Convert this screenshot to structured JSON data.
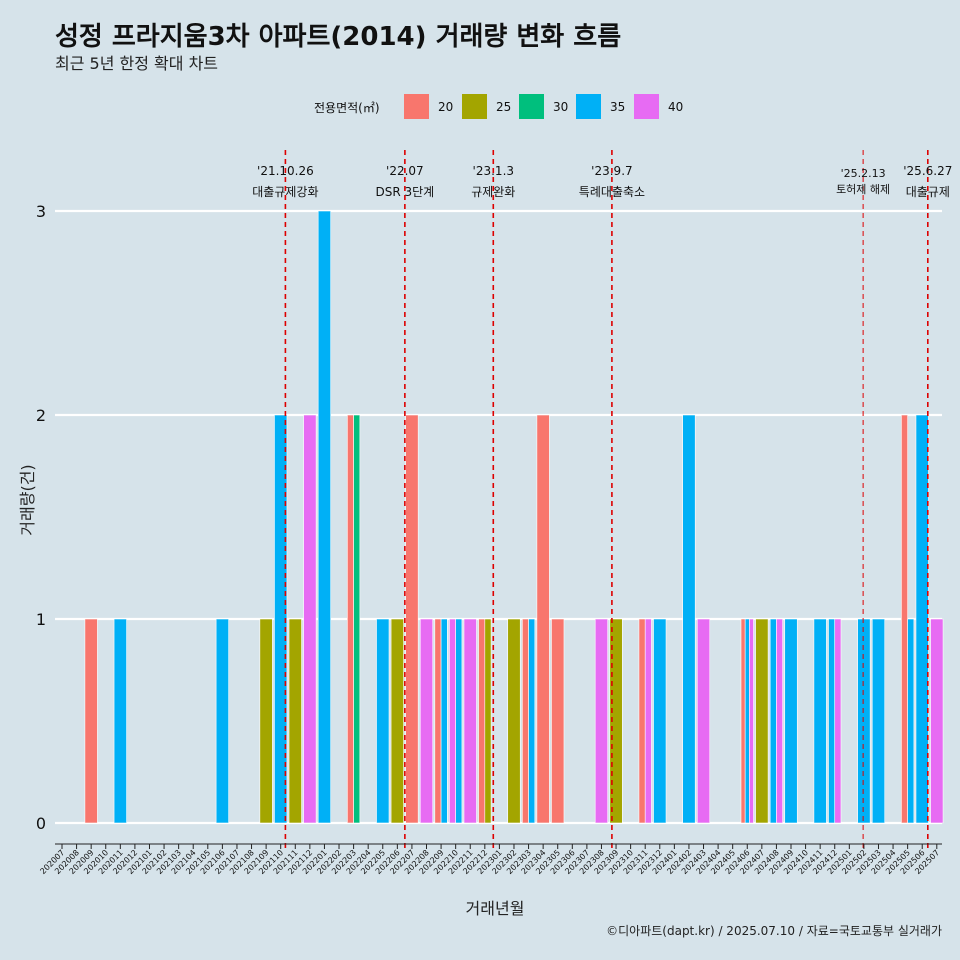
{
  "title": "성정 프라지움3차 아파트(2014) 거래량 변화 흐름",
  "subtitle": "최근 5년 한정 확대 차트",
  "caption": "©디아파트(dapt.kr) / 2025.07.10 / 자료=국토교통부 실거래가",
  "colors": {
    "background": "#d6e3ea",
    "grid": "#ffffff",
    "event_line": "#dd0000",
    "20": "#f8766d",
    "25": "#a3a500",
    "30": "#00bf7d",
    "35": "#00b0f6",
    "40": "#e76bf3"
  },
  "legend": {
    "title": "전용면적(㎡)",
    "items": [
      {
        "key": "20",
        "label": "20"
      },
      {
        "key": "25",
        "label": "25"
      },
      {
        "key": "30",
        "label": "30"
      },
      {
        "key": "35",
        "label": "35"
      },
      {
        "key": "40",
        "label": "40"
      }
    ]
  },
  "chart_data": {
    "type": "bar",
    "title": "성정 프라지움3차 아파트(2014) 거래량 변화 흐름",
    "subtitle": "최근 5년 한정 확대 차트",
    "xlabel": "거래년월",
    "ylabel": "거래량(건)",
    "ylim": [
      0,
      3
    ],
    "yticks": [
      0,
      1,
      2,
      3
    ],
    "grid": true,
    "legend_position": "top",
    "categories": [
      "202007",
      "202008",
      "202009",
      "202010",
      "202011",
      "202012",
      "202101",
      "202102",
      "202103",
      "202104",
      "202105",
      "202106",
      "202107",
      "202108",
      "202109",
      "202110",
      "202111",
      "202112",
      "202201",
      "202202",
      "202203",
      "202204",
      "202205",
      "202206",
      "202207",
      "202208",
      "202209",
      "202210",
      "202211",
      "202212",
      "202301",
      "202302",
      "202303",
      "202304",
      "202305",
      "202306",
      "202307",
      "202308",
      "202309",
      "202310",
      "202311",
      "202312",
      "202401",
      "202402",
      "202403",
      "202404",
      "202405",
      "202406",
      "202407",
      "202408",
      "202409",
      "202410",
      "202411",
      "202412",
      "202501",
      "202502",
      "202503",
      "202504",
      "202505",
      "202506",
      "202507"
    ],
    "bars": [
      {
        "month": "202009",
        "groups": [
          {
            "area": "20",
            "value": 1
          }
        ]
      },
      {
        "month": "202011",
        "groups": [
          {
            "area": "35",
            "value": 1
          }
        ]
      },
      {
        "month": "202106",
        "groups": [
          {
            "area": "35",
            "value": 1
          }
        ]
      },
      {
        "month": "202109",
        "groups": [
          {
            "area": "25",
            "value": 1
          }
        ]
      },
      {
        "month": "202110",
        "groups": [
          {
            "area": "35",
            "value": 2
          }
        ]
      },
      {
        "month": "202111",
        "groups": [
          {
            "area": "25",
            "value": 1
          }
        ]
      },
      {
        "month": "202112",
        "groups": [
          {
            "area": "40",
            "value": 2
          }
        ]
      },
      {
        "month": "202201",
        "groups": [
          {
            "area": "35",
            "value": 3
          }
        ]
      },
      {
        "month": "202203",
        "groups": [
          {
            "area": "20",
            "value": 2
          },
          {
            "area": "30",
            "value": 2
          }
        ]
      },
      {
        "month": "202205",
        "groups": [
          {
            "area": "35",
            "value": 1
          }
        ]
      },
      {
        "month": "202206",
        "groups": [
          {
            "area": "25",
            "value": 1
          }
        ]
      },
      {
        "month": "202207",
        "groups": [
          {
            "area": "20",
            "value": 2
          }
        ]
      },
      {
        "month": "202208",
        "groups": [
          {
            "area": "40",
            "value": 1
          }
        ]
      },
      {
        "month": "202209",
        "groups": [
          {
            "area": "20",
            "value": 1
          },
          {
            "area": "35",
            "value": 1
          }
        ]
      },
      {
        "month": "202210",
        "groups": [
          {
            "area": "40",
            "value": 1
          },
          {
            "area": "35",
            "value": 1
          }
        ]
      },
      {
        "month": "202211",
        "groups": [
          {
            "area": "40",
            "value": 1
          }
        ]
      },
      {
        "month": "202212",
        "groups": [
          {
            "area": "20",
            "value": 1
          },
          {
            "area": "25",
            "value": 1
          }
        ]
      },
      {
        "month": "202302",
        "groups": [
          {
            "area": "25",
            "value": 1
          }
        ]
      },
      {
        "month": "202303",
        "groups": [
          {
            "area": "20",
            "value": 1
          },
          {
            "area": "35",
            "value": 1
          }
        ]
      },
      {
        "month": "202304",
        "groups": [
          {
            "area": "20",
            "value": 2
          }
        ]
      },
      {
        "month": "202305",
        "groups": [
          {
            "area": "20",
            "value": 1
          }
        ]
      },
      {
        "month": "202308",
        "groups": [
          {
            "area": "40",
            "value": 1
          }
        ]
      },
      {
        "month": "202309",
        "groups": [
          {
            "area": "25",
            "value": 1
          }
        ]
      },
      {
        "month": "202311",
        "groups": [
          {
            "area": "20",
            "value": 1
          },
          {
            "area": "40",
            "value": 1
          }
        ]
      },
      {
        "month": "202312",
        "groups": [
          {
            "area": "35",
            "value": 1
          }
        ]
      },
      {
        "month": "202402",
        "groups": [
          {
            "area": "35",
            "value": 2
          }
        ]
      },
      {
        "month": "202403",
        "groups": [
          {
            "area": "40",
            "value": 1
          }
        ]
      },
      {
        "month": "202406",
        "groups": [
          {
            "area": "20",
            "value": 1
          },
          {
            "area": "35",
            "value": 1
          },
          {
            "area": "40",
            "value": 1
          }
        ]
      },
      {
        "month": "202407",
        "groups": [
          {
            "area": "25",
            "value": 1
          }
        ]
      },
      {
        "month": "202408",
        "groups": [
          {
            "area": "35",
            "value": 1
          },
          {
            "area": "40",
            "value": 1
          }
        ]
      },
      {
        "month": "202409",
        "groups": [
          {
            "area": "35",
            "value": 1
          }
        ]
      },
      {
        "month": "202411",
        "groups": [
          {
            "area": "35",
            "value": 1
          }
        ]
      },
      {
        "month": "202412",
        "groups": [
          {
            "area": "35",
            "value": 1
          },
          {
            "area": "40",
            "value": 1
          }
        ]
      },
      {
        "month": "202502",
        "groups": [
          {
            "area": "35",
            "value": 1
          }
        ]
      },
      {
        "month": "202503",
        "groups": [
          {
            "area": "35",
            "value": 1
          }
        ]
      },
      {
        "month": "202505",
        "groups": [
          {
            "area": "20",
            "value": 2
          },
          {
            "area": "35",
            "value": 1
          }
        ]
      },
      {
        "month": "202506",
        "groups": [
          {
            "area": "35",
            "value": 2
          }
        ]
      },
      {
        "month": "202507",
        "groups": [
          {
            "area": "40",
            "value": 1
          }
        ]
      }
    ],
    "events": [
      {
        "date": "2021-10-26",
        "line1": "'21.10.26",
        "line2": "대출규제강화",
        "small": false
      },
      {
        "date": "2022-07-01",
        "line1": "'22.07",
        "line2": "DSR 3단계",
        "small": false
      },
      {
        "date": "2023-01-03",
        "line1": "'23.1.3",
        "line2": "규제완화",
        "small": false
      },
      {
        "date": "2023-09-07",
        "line1": "'23.9.7",
        "line2": "특례대출축소",
        "small": false
      },
      {
        "date": "2025-02-13",
        "line1": "'25.2.13",
        "line2": "토허제 해제",
        "small": true
      },
      {
        "date": "2025-06-27",
        "line1": "'25.6.27",
        "line2": "대출규제",
        "small": false
      }
    ]
  }
}
